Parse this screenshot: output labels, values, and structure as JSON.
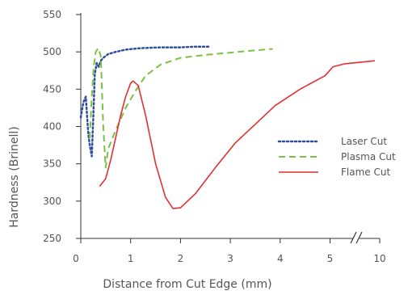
{
  "chart_data": {
    "type": "line",
    "title": "",
    "xlabel": "Distance from Cut Edge (mm)",
    "ylabel": "Hardness (Brinell)",
    "ylim": [
      250,
      550
    ],
    "xlim": [
      0,
      10
    ],
    "x_axis_break": true,
    "x_break_between": [
      5,
      10
    ],
    "x_ticks": [
      0,
      1,
      2,
      3,
      4,
      5,
      10
    ],
    "y_ticks": [
      250,
      300,
      350,
      400,
      450,
      500,
      550
    ],
    "grid": false,
    "legend_position": "right",
    "series": [
      {
        "name": "Laser Cut",
        "color": "#2f4f9c",
        "style": "dotted",
        "x": [
          0.0,
          0.05,
          0.1,
          0.12,
          0.15,
          0.18,
          0.22,
          0.25,
          0.28,
          0.32,
          0.36,
          0.4,
          0.45,
          0.55,
          0.7,
          0.9,
          1.2,
          1.6,
          2.0,
          2.3,
          2.6
        ],
        "y": [
          412,
          432,
          440,
          420,
          390,
          375,
          360,
          410,
          470,
          485,
          480,
          488,
          492,
          497,
          500,
          503,
          505,
          506,
          506,
          507,
          507
        ]
      },
      {
        "name": "Plasma Cut",
        "color": "#7cc142",
        "style": "dashed",
        "x": [
          0.18,
          0.22,
          0.26,
          0.3,
          0.35,
          0.4,
          0.45,
          0.5,
          0.55,
          0.7,
          0.9,
          1.1,
          1.3,
          1.6,
          2.0,
          2.5,
          3.0,
          3.5,
          3.85
        ],
        "y": [
          384,
          440,
          480,
          500,
          505,
          495,
          400,
          345,
          370,
          395,
          425,
          448,
          468,
          483,
          492,
          496,
          499,
          502,
          504
        ]
      },
      {
        "name": "Flame Cut",
        "color": "#e03030",
        "style": "solid",
        "x": [
          0.38,
          0.5,
          0.6,
          0.7,
          0.8,
          0.9,
          1.0,
          1.05,
          1.15,
          1.3,
          1.5,
          1.7,
          1.85,
          2.0,
          2.3,
          2.7,
          3.1,
          3.5,
          3.9,
          4.4,
          4.9,
          5.3,
          6.5,
          8.0,
          9.5
        ],
        "y": [
          320,
          330,
          355,
          385,
          415,
          440,
          458,
          461,
          455,
          415,
          350,
          305,
          290,
          291,
          310,
          345,
          378,
          403,
          428,
          450,
          468,
          480,
          484,
          486,
          488
        ]
      }
    ]
  }
}
